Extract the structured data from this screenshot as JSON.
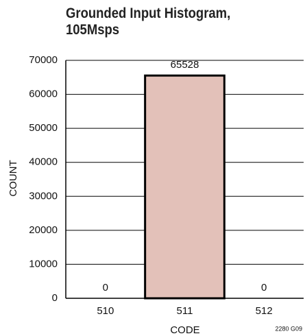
{
  "chart_data": {
    "type": "bar",
    "title": "Grounded Input Histogram, 105Msps",
    "categories": [
      "510",
      "511",
      "512"
    ],
    "values": [
      0,
      65528,
      0
    ],
    "color": "#e3c1b9",
    "xlabel": "CODE",
    "ylabel": "COUNT",
    "annotation": "2280 G09",
    "ylim": [
      0,
      70000
    ],
    "yticks": [
      0,
      10000,
      20000,
      30000,
      40000,
      50000,
      60000,
      70000
    ],
    "grid": true
  }
}
